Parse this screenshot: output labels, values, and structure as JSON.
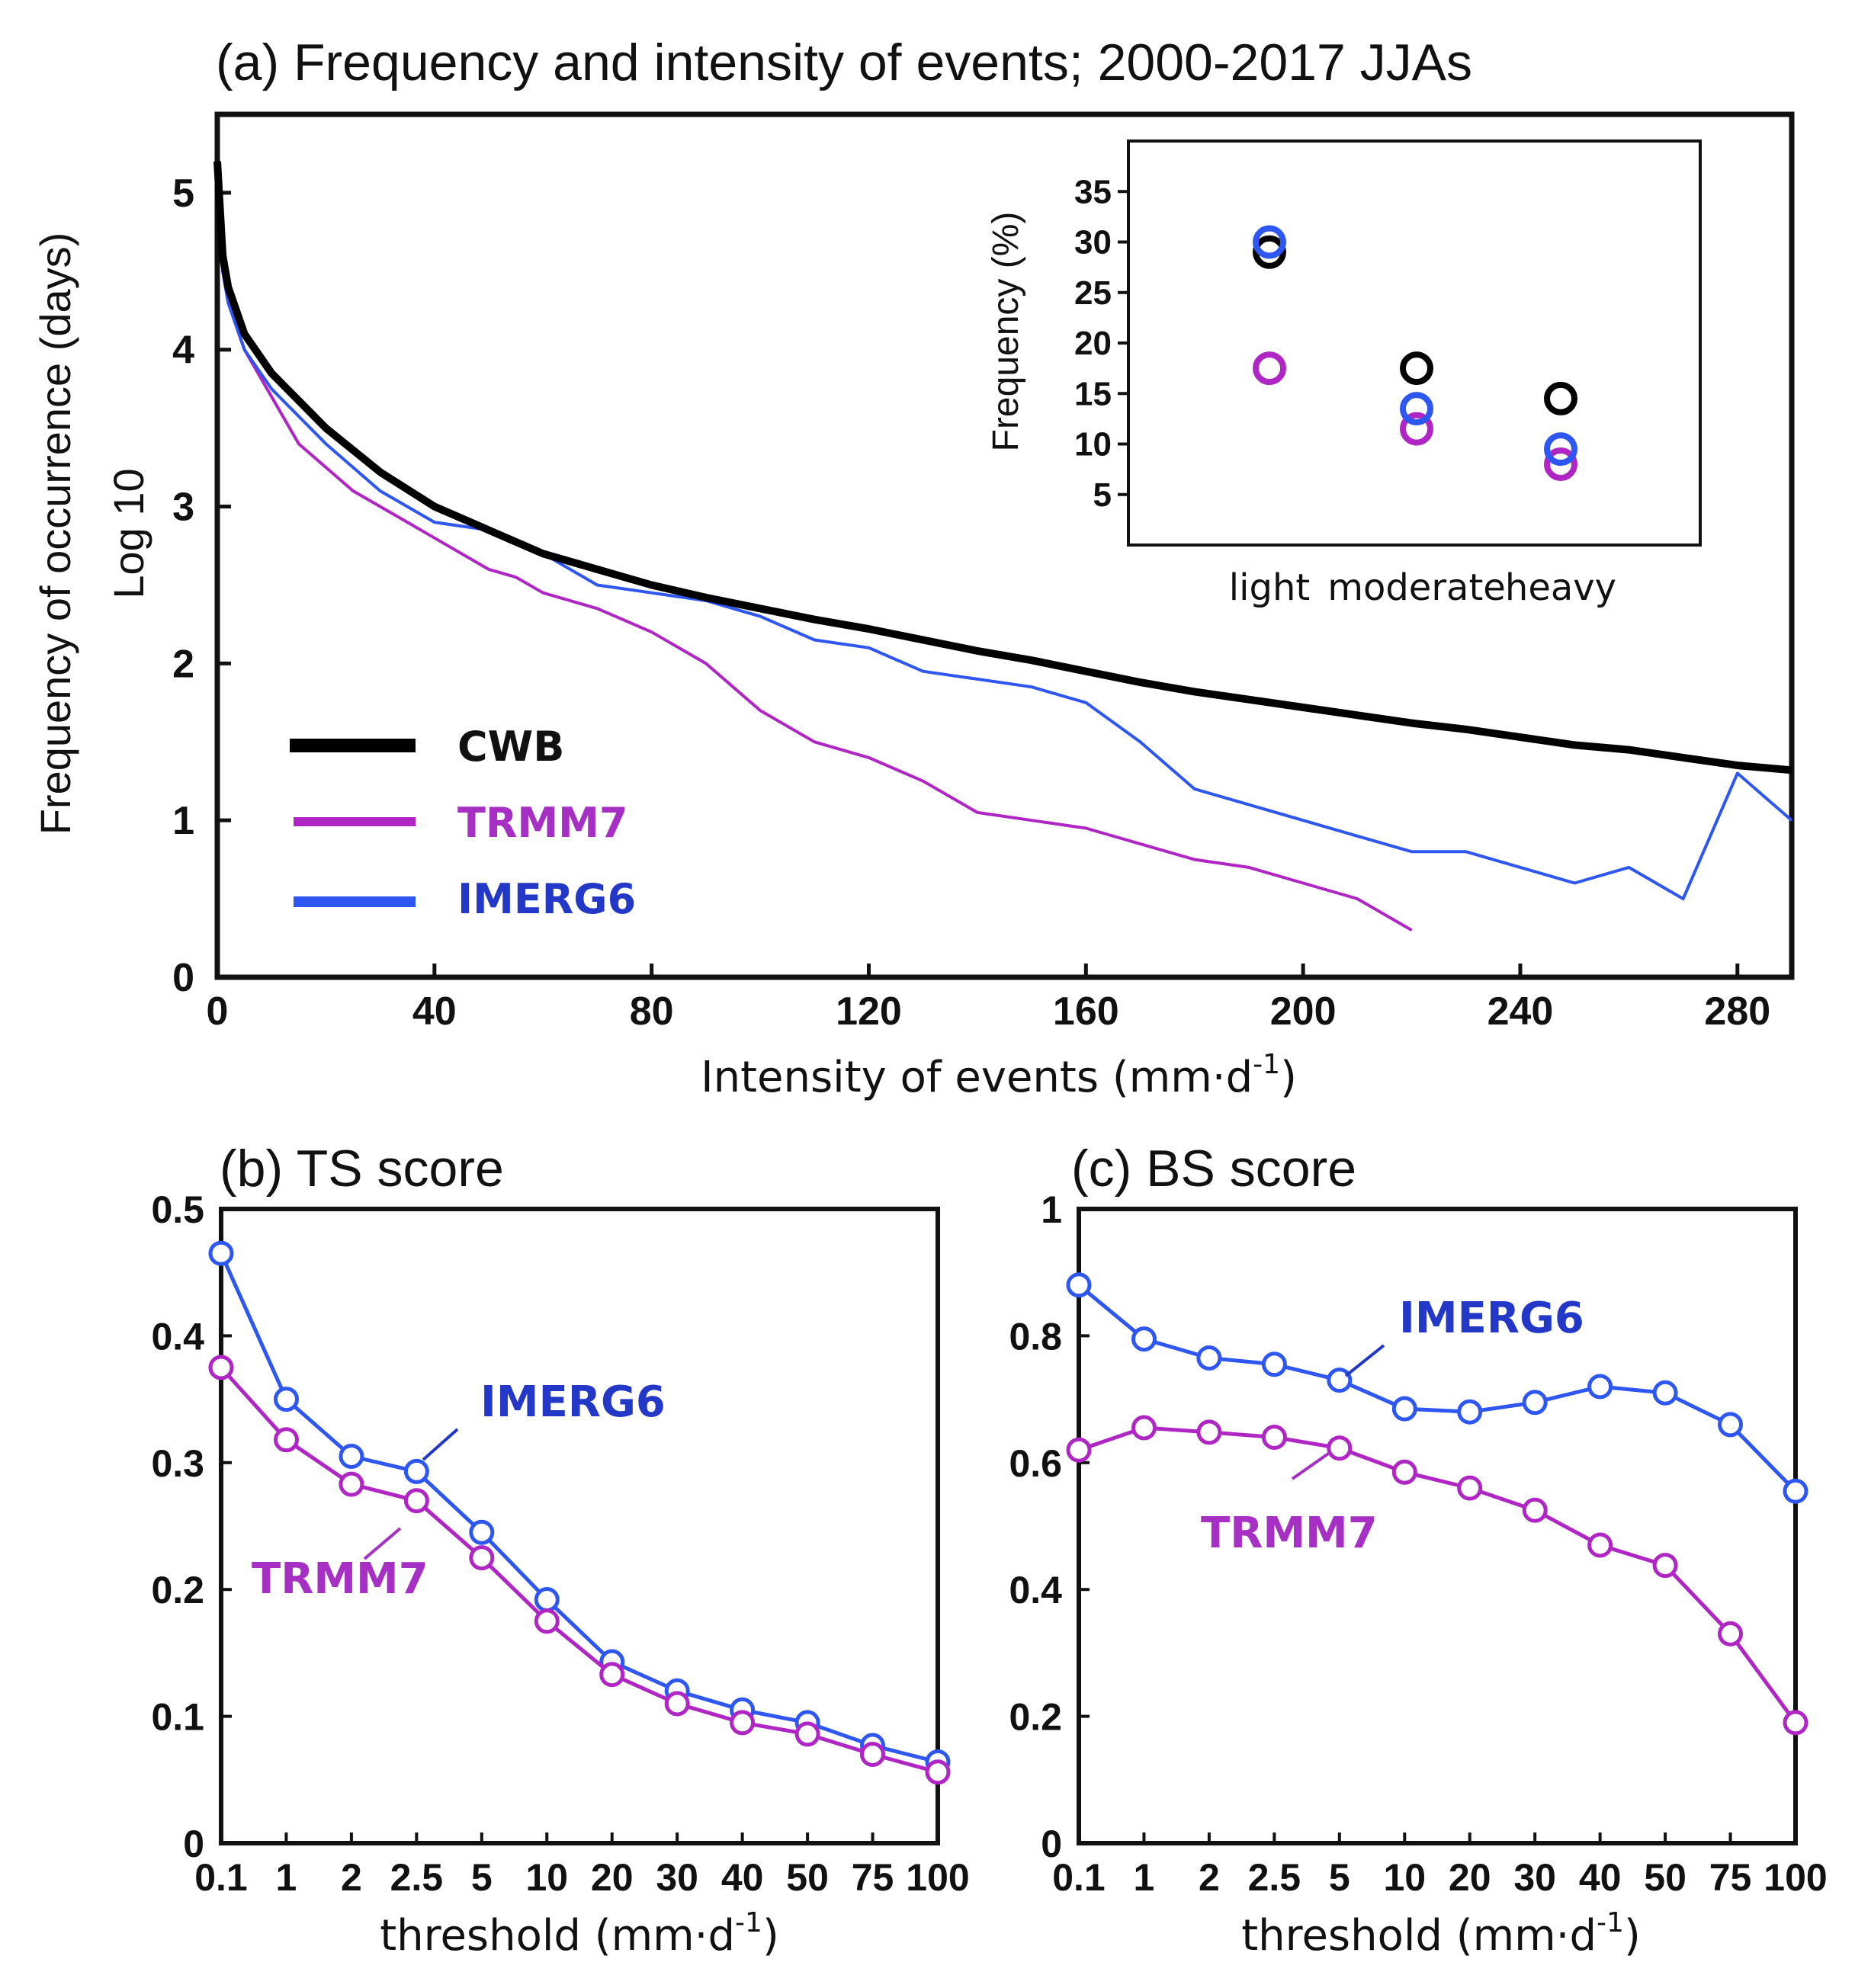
{
  "colors": {
    "cwb": "#000000",
    "trmm7": "#b026c4",
    "imerg6": "#2e56f0",
    "trmm7_text": "#a630c4",
    "imerg6_text": "#2438c8"
  },
  "chart_data": [
    {
      "id": "a",
      "type": "line",
      "title": "(a) Frequency and intensity of events; 2000-2017 JJAs",
      "xlabel": "Intensity of events (mm·d",
      "xlabel_sup": "-1",
      "xlabel_end": ")",
      "ylabel_line1": "Frequency of occurrence (days)",
      "ylabel_line2": "Log 10",
      "xlim": [
        0,
        290
      ],
      "ylim": [
        0,
        5.5
      ],
      "xticks": [
        "0",
        "40",
        "80",
        "120",
        "160",
        "200",
        "240",
        "280"
      ],
      "yticks": [
        "0",
        "1",
        "2",
        "3",
        "4",
        "5"
      ],
      "legend": [
        "CWB",
        "TRMM7",
        "IMERG6"
      ],
      "series": [
        {
          "name": "CWB",
          "x": [
            0,
            1,
            2,
            5,
            10,
            20,
            30,
            40,
            50,
            60,
            70,
            80,
            90,
            100,
            110,
            120,
            130,
            140,
            150,
            160,
            170,
            180,
            190,
            200,
            210,
            220,
            230,
            240,
            250,
            260,
            270,
            280,
            290
          ],
          "y": [
            5.2,
            4.6,
            4.4,
            4.1,
            3.85,
            3.5,
            3.22,
            3.0,
            2.85,
            2.7,
            2.6,
            2.5,
            2.42,
            2.35,
            2.28,
            2.22,
            2.15,
            2.08,
            2.02,
            1.95,
            1.88,
            1.82,
            1.77,
            1.72,
            1.67,
            1.62,
            1.58,
            1.53,
            1.48,
            1.45,
            1.4,
            1.35,
            1.32
          ]
        },
        {
          "name": "TRMM7",
          "x": [
            0,
            1,
            2,
            5,
            10,
            15,
            20,
            25,
            30,
            40,
            50,
            55,
            60,
            70,
            80,
            90,
            100,
            110,
            120,
            130,
            140,
            150,
            160,
            170,
            180,
            190,
            200,
            210,
            220
          ],
          "y": [
            5.2,
            4.5,
            4.3,
            4.0,
            3.7,
            3.4,
            3.25,
            3.1,
            3.0,
            2.8,
            2.6,
            2.55,
            2.45,
            2.35,
            2.2,
            2.0,
            1.7,
            1.5,
            1.4,
            1.25,
            1.05,
            1.0,
            0.95,
            0.85,
            0.75,
            0.7,
            0.6,
            0.5,
            0.3
          ]
        },
        {
          "name": "IMERG6",
          "x": [
            0,
            1,
            2,
            5,
            10,
            20,
            30,
            40,
            50,
            60,
            70,
            80,
            90,
            100,
            110,
            120,
            130,
            140,
            150,
            160,
            170,
            180,
            190,
            200,
            210,
            220,
            230,
            240,
            250,
            260,
            270,
            280,
            290
          ],
          "y": [
            5.2,
            4.5,
            4.3,
            4.0,
            3.75,
            3.4,
            3.1,
            2.9,
            2.85,
            2.7,
            2.5,
            2.45,
            2.4,
            2.3,
            2.15,
            2.1,
            1.95,
            1.9,
            1.85,
            1.75,
            1.5,
            1.2,
            1.1,
            1.0,
            0.9,
            0.8,
            0.8,
            0.7,
            0.6,
            0.7,
            0.5,
            1.3,
            1.0
          ]
        }
      ]
    },
    {
      "id": "a-inset",
      "type": "scatter",
      "ylabel": "Frequency (%)",
      "categories": [
        "light",
        "moderate",
        "heavy"
      ],
      "yticks": [
        "5",
        "10",
        "15",
        "20",
        "25",
        "30",
        "35"
      ],
      "ylim": [
        0,
        40
      ],
      "series": [
        {
          "name": "CWB",
          "values": [
            29,
            17.5,
            14.5
          ]
        },
        {
          "name": "TRMM7",
          "values": [
            17.5,
            11.5,
            8
          ]
        },
        {
          "name": "IMERG6",
          "values": [
            30,
            13.5,
            9.5
          ]
        }
      ]
    },
    {
      "id": "b",
      "type": "line",
      "title": "(b) TS score",
      "xlabel": "threshold (mm·d",
      "xlabel_sup": "-1",
      "xlabel_end": ")",
      "categories": [
        "0.1",
        "1",
        "2",
        "2.5",
        "5",
        "10",
        "20",
        "30",
        "40",
        "50",
        "75",
        "100"
      ],
      "ylim": [
        0,
        0.5
      ],
      "yticks": [
        "0",
        "0.1",
        "0.2",
        "0.3",
        "0.4",
        "0.5"
      ],
      "annotations": [
        "IMERG6",
        "TRMM7"
      ],
      "series": [
        {
          "name": "IMERG6",
          "values": [
            0.465,
            0.35,
            0.305,
            0.293,
            0.245,
            0.192,
            0.143,
            0.12,
            0.105,
            0.095,
            0.077,
            0.064
          ]
        },
        {
          "name": "TRMM7",
          "values": [
            0.375,
            0.318,
            0.283,
            0.27,
            0.225,
            0.175,
            0.133,
            0.11,
            0.095,
            0.086,
            0.07,
            0.056
          ]
        }
      ]
    },
    {
      "id": "c",
      "type": "line",
      "title": "(c) BS score",
      "xlabel": "threshold (mm·d",
      "xlabel_sup": "-1",
      "xlabel_end": ")",
      "categories": [
        "0.1",
        "1",
        "2",
        "2.5",
        "5",
        "10",
        "20",
        "30",
        "40",
        "50",
        "75",
        "100"
      ],
      "ylim": [
        0,
        1
      ],
      "yticks": [
        "0",
        "0.2",
        "0.4",
        "0.6",
        "0.8",
        "1"
      ],
      "annotations": [
        "IMERG6",
        "TRMM7"
      ],
      "series": [
        {
          "name": "IMERG6",
          "values": [
            0.88,
            0.795,
            0.765,
            0.755,
            0.73,
            0.685,
            0.68,
            0.695,
            0.72,
            0.71,
            0.66,
            0.555
          ]
        },
        {
          "name": "TRMM7",
          "values": [
            0.62,
            0.655,
            0.648,
            0.64,
            0.623,
            0.585,
            0.56,
            0.525,
            0.47,
            0.438,
            0.33,
            0.19
          ]
        }
      ]
    }
  ]
}
